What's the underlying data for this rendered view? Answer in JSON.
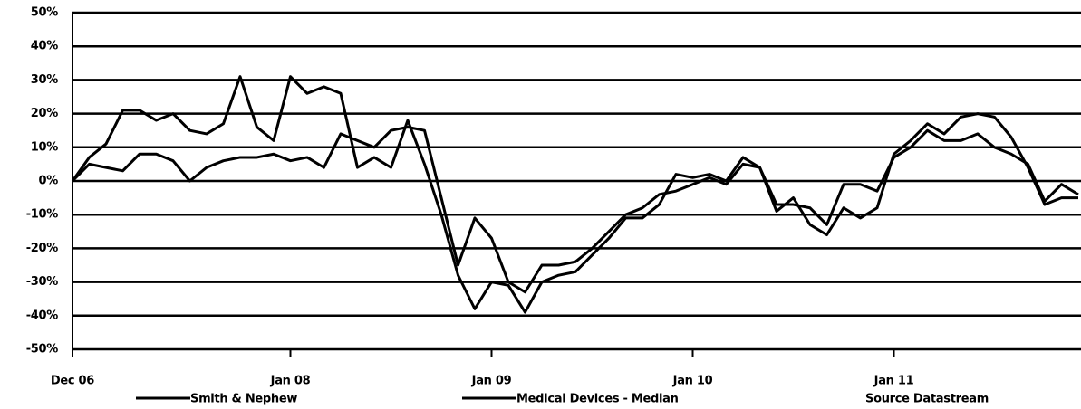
{
  "chart_data": {
    "type": "line",
    "categories": [
      "Dec 06",
      null,
      null,
      null,
      null,
      null,
      null,
      null,
      null,
      null,
      null,
      null,
      null,
      "Jan 08",
      null,
      null,
      null,
      null,
      null,
      null,
      null,
      null,
      null,
      null,
      null,
      "Jan 09",
      null,
      null,
      null,
      null,
      null,
      null,
      null,
      null,
      null,
      null,
      null,
      "Jan 10",
      null,
      null,
      null,
      null,
      null,
      null,
      null,
      null,
      null,
      null,
      null,
      "Jan 11",
      null,
      null,
      null,
      null,
      null,
      null,
      null,
      null,
      null,
      null,
      null
    ],
    "series": [
      {
        "name": "Smith & Nephew",
        "color": "#000000",
        "values": [
          0,
          7,
          11,
          21,
          21,
          18,
          20,
          15,
          14,
          17,
          31,
          16,
          12,
          31,
          26,
          28,
          26,
          4,
          7,
          4,
          18,
          5,
          -10,
          -28,
          -38,
          -30,
          -31,
          -39,
          -30,
          -28,
          -27,
          -22,
          -17,
          -11,
          -11,
          -7,
          2,
          1,
          2,
          0,
          7,
          4,
          -9,
          -5,
          -13,
          -16,
          -8,
          -11,
          -8,
          8,
          12,
          17,
          14,
          19,
          20,
          19,
          13,
          4,
          -7,
          -5,
          -5
        ]
      },
      {
        "name": "Medical Devices - Median",
        "color": "#000000",
        "values": [
          0,
          5,
          4,
          3,
          8,
          8,
          6,
          0,
          4,
          6,
          7,
          7,
          8,
          6,
          7,
          4,
          14,
          12,
          10,
          15,
          16,
          15,
          -5,
          -25,
          -11,
          -17,
          -30,
          -33,
          -25,
          -25,
          -24,
          -20,
          -15,
          -10,
          -8,
          -4,
          -3,
          -1,
          1,
          -1,
          5,
          4,
          -7,
          -7,
          -8,
          -13,
          -1,
          -1,
          -3,
          7,
          10,
          15,
          12,
          12,
          14,
          10,
          8,
          5,
          -6,
          -1,
          -4
        ]
      }
    ],
    "ylim": [
      -50,
      50
    ],
    "yticks": [
      {
        "value": -50,
        "label": "-50%"
      },
      {
        "value": -40,
        "label": "-40%"
      },
      {
        "value": -30,
        "label": "-30%"
      },
      {
        "value": -20,
        "label": "-20%"
      },
      {
        "value": -10,
        "label": "-10%"
      },
      {
        "value": 0,
        "label": "0%"
      },
      {
        "value": 10,
        "label": "10%"
      },
      {
        "value": 20,
        "label": "20%"
      },
      {
        "value": 30,
        "label": "30%"
      },
      {
        "value": 40,
        "label": "40%"
      },
      {
        "value": 50,
        "label": "50%"
      }
    ],
    "grid": true,
    "annotation": "Source Datastream"
  }
}
